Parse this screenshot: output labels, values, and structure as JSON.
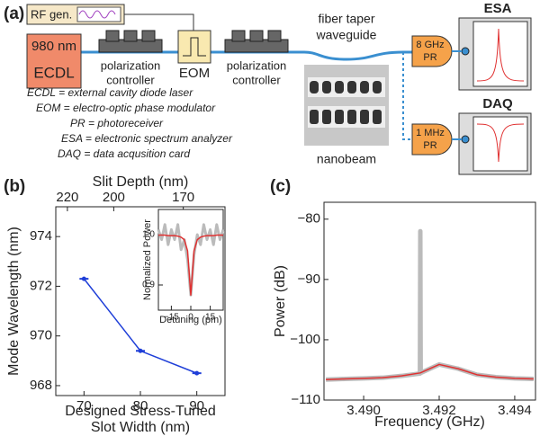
{
  "diagram": {
    "panel": "(a)",
    "rf": "RF gen.",
    "laser": [
      "980 nm",
      "ECDL"
    ],
    "pc1": [
      "polarization",
      "controller"
    ],
    "eom": "EOM",
    "pc2": [
      "polarization",
      "controller"
    ],
    "taper": [
      "fiber taper",
      "waveguide"
    ],
    "nanobeam": "nanobeam",
    "pr1": [
      "8 GHz",
      "PR"
    ],
    "pr2": [
      "1 MHz",
      "PR"
    ],
    "esa": "ESA",
    "daq": "DAQ",
    "defs": [
      "ECDL = external cavity diode laser",
      "EOM = electro-optic phase modulator",
      "PR = photoreceiver",
      "ESA = electronic spectrum analyzer",
      "DAQ = data acqusition card"
    ]
  },
  "chart_data": [
    {
      "type": "line",
      "panel": "(b)",
      "xlabel": [
        "Designed Stress-Tuned",
        "Slot Width (nm)"
      ],
      "ylabel": "Mode Wavelength (nm)",
      "x2label": "Slit Depth (nm)",
      "x": [
        70,
        80,
        90
      ],
      "values": [
        972.3,
        969.4,
        968.5
      ],
      "xerr": [
        0.8,
        0.8,
        0.8
      ],
      "color": "#1f3fd8",
      "xlim": [
        65,
        95
      ],
      "xticks": [
        70,
        80,
        90
      ],
      "ylim": [
        967.6,
        975.2
      ],
      "yticks": [
        968,
        970,
        972,
        974
      ],
      "x2lim": [
        225,
        152
      ],
      "x2ticks": [
        220,
        200,
        170
      ],
      "inset": {
        "type": "line",
        "xlabel": "Detuning (pm)",
        "ylabel": "Normalized Power",
        "xlim": [
          -25,
          25
        ],
        "xticks": [
          {
            "value": -15,
            "label": "−15"
          },
          0,
          15
        ],
        "ylim": [
          0.85,
          1.05
        ],
        "yticks": [
          0.9,
          {
            "value": 1,
            "label": "1.0"
          }
        ],
        "series": [
          {
            "color": "#bbbbbb",
            "x": [
              -25,
              -22.5,
              -20,
              -17.5,
              -15,
              -12.5,
              -10,
              -7.5,
              -5,
              -2.5,
              0,
              2.5,
              5,
              7.5,
              10,
              12.5,
              15,
              17.5,
              20,
              22.5,
              25
            ],
            "values": [
              1.01,
              0.99,
              1.02,
              0.98,
              1.01,
              0.99,
              1.02,
              0.97,
              0.99,
              0.95,
              0.88,
              0.96,
              1.0,
              0.98,
              1.02,
              0.99,
              1.01,
              0.98,
              1.02,
              0.99,
              1.01
            ]
          },
          {
            "color": "#e03030",
            "x": [
              -25,
              -22.5,
              -20,
              -17.5,
              -15,
              -12.5,
              -10,
              -7.5,
              -5,
              -2.5,
              0,
              2.5,
              5,
              7.5,
              10,
              12.5,
              15,
              17.5,
              20,
              22.5,
              25
            ],
            "values": [
              0.999,
              0.999,
              0.999,
              0.998,
              0.998,
              0.998,
              0.997,
              0.995,
              0.99,
              0.968,
              0.88,
              0.968,
              0.99,
              0.995,
              0.997,
              0.998,
              0.998,
              0.998,
              0.999,
              0.999,
              0.999
            ]
          }
        ]
      }
    },
    {
      "type": "line",
      "panel": "(c)",
      "xlabel": "Frequency (GHz)",
      "ylabel": "Power (dB)",
      "xlim": [
        3.48895,
        3.49455
      ],
      "xticks": [
        {
          "value": 3.49,
          "label": "3.490"
        },
        {
          "value": 3.492,
          "label": "3.492"
        },
        {
          "value": 3.494,
          "label": "3.494"
        }
      ],
      "ylim": [
        -110,
        -77.2
      ],
      "yticks": [
        {
          "value": -80,
          "label": "−80"
        },
        {
          "value": -90,
          "label": "−90"
        },
        {
          "value": -100,
          "label": "−100"
        },
        {
          "value": -110,
          "label": "−110"
        }
      ],
      "series": [
        {
          "color": "#bbbbbb",
          "x": [
            3.489,
            3.4895,
            3.49,
            3.4905,
            3.491,
            3.49149,
            3.4915,
            3.49151,
            3.492,
            3.4925,
            3.493,
            3.4935,
            3.494,
            3.4945
          ],
          "values": [
            -106.6,
            -106.5,
            -106.4,
            -106.3,
            -106,
            -105.6,
            -82,
            -105.5,
            -104.1,
            -104.8,
            -105.8,
            -106.2,
            -106.4,
            -106.5
          ]
        },
        {
          "color": "#e03030",
          "x": [
            3.489,
            3.4895,
            3.49,
            3.4905,
            3.491,
            3.4915,
            3.492,
            3.4925,
            3.493,
            3.4935,
            3.494,
            3.4945
          ],
          "values": [
            -106.6,
            -106.5,
            -106.4,
            -106.3,
            -106,
            -105.5,
            -104.1,
            -104.8,
            -105.8,
            -106.2,
            -106.4,
            -106.5
          ]
        }
      ]
    }
  ]
}
